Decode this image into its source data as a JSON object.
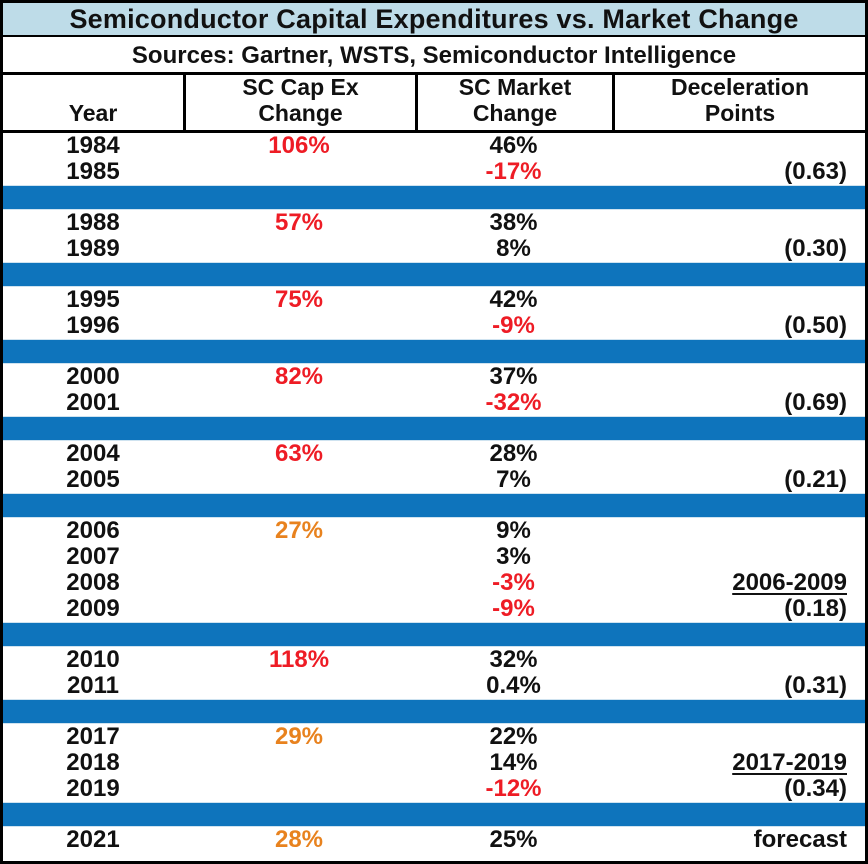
{
  "title": "Semiconductor Capital Expenditures vs. Market Change",
  "sources_line": "Sources: Gartner, WSTS, Semiconductor Intelligence",
  "header": {
    "year": "Year",
    "cap_ex": "SC Cap Ex\nChange",
    "market": "SC Market\nChange",
    "decel": "Deceleration\nPoints"
  },
  "colors": {
    "black": "#111111",
    "red": "#EE1C25",
    "orange": "#E8821E",
    "bar_blue": "#0E74BC",
    "title_bg": "#BEDCE8"
  },
  "chart_data": {
    "type": "table",
    "title": "Semiconductor Capital Expenditures vs. Market Change",
    "subtitle": "Sources: Gartner, WSTS, Semiconductor Intelligence",
    "columns": [
      "Year",
      "SC Cap Ex Change",
      "SC Market Change",
      "Deceleration Points"
    ],
    "sections": [
      {
        "rows": [
          {
            "year": "1984",
            "cap_ex": "106%",
            "cap_ex_color": "red",
            "market": "46%",
            "market_color": "black",
            "decel": "",
            "decel_underline": false
          },
          {
            "year": "1985",
            "cap_ex": "",
            "cap_ex_color": "black",
            "market": "-17%",
            "market_color": "red",
            "decel": "(0.63)",
            "decel_underline": false
          }
        ]
      },
      {
        "rows": [
          {
            "year": "1988",
            "cap_ex": "57%",
            "cap_ex_color": "red",
            "market": "38%",
            "market_color": "black",
            "decel": "",
            "decel_underline": false
          },
          {
            "year": "1989",
            "cap_ex": "",
            "cap_ex_color": "black",
            "market": "8%",
            "market_color": "black",
            "decel": "(0.30)",
            "decel_underline": false
          }
        ]
      },
      {
        "rows": [
          {
            "year": "1995",
            "cap_ex": "75%",
            "cap_ex_color": "red",
            "market": "42%",
            "market_color": "black",
            "decel": "",
            "decel_underline": false
          },
          {
            "year": "1996",
            "cap_ex": "",
            "cap_ex_color": "black",
            "market": "-9%",
            "market_color": "red",
            "decel": "(0.50)",
            "decel_underline": false
          }
        ]
      },
      {
        "rows": [
          {
            "year": "2000",
            "cap_ex": "82%",
            "cap_ex_color": "red",
            "market": "37%",
            "market_color": "black",
            "decel": "",
            "decel_underline": false
          },
          {
            "year": "2001",
            "cap_ex": "",
            "cap_ex_color": "black",
            "market": "-32%",
            "market_color": "red",
            "decel": "(0.69)",
            "decel_underline": false
          }
        ]
      },
      {
        "rows": [
          {
            "year": "2004",
            "cap_ex": "63%",
            "cap_ex_color": "red",
            "market": "28%",
            "market_color": "black",
            "decel": "",
            "decel_underline": false
          },
          {
            "year": "2005",
            "cap_ex": "",
            "cap_ex_color": "black",
            "market": "7%",
            "market_color": "black",
            "decel": "(0.21)",
            "decel_underline": false
          }
        ]
      },
      {
        "rows": [
          {
            "year": "2006",
            "cap_ex": "27%",
            "cap_ex_color": "orange",
            "market": "9%",
            "market_color": "black",
            "decel": "",
            "decel_underline": false
          },
          {
            "year": "2007",
            "cap_ex": "",
            "cap_ex_color": "black",
            "market": "3%",
            "market_color": "black",
            "decel": "",
            "decel_underline": false
          },
          {
            "year": "2008",
            "cap_ex": "",
            "cap_ex_color": "black",
            "market": "-3%",
            "market_color": "red",
            "decel": "2006-2009",
            "decel_underline": true
          },
          {
            "year": "2009",
            "cap_ex": "",
            "cap_ex_color": "black",
            "market": "-9%",
            "market_color": "red",
            "decel": "(0.18)",
            "decel_underline": false
          }
        ]
      },
      {
        "rows": [
          {
            "year": "2010",
            "cap_ex": "118%",
            "cap_ex_color": "red",
            "market": "32%",
            "market_color": "black",
            "decel": "",
            "decel_underline": false
          },
          {
            "year": "2011",
            "cap_ex": "",
            "cap_ex_color": "black",
            "market": "0.4%",
            "market_color": "black",
            "decel": "(0.31)",
            "decel_underline": false
          }
        ]
      },
      {
        "rows": [
          {
            "year": "2017",
            "cap_ex": "29%",
            "cap_ex_color": "orange",
            "market": "22%",
            "market_color": "black",
            "decel": "",
            "decel_underline": false
          },
          {
            "year": "2018",
            "cap_ex": "",
            "cap_ex_color": "black",
            "market": "14%",
            "market_color": "black",
            "decel": "2017-2019",
            "decel_underline": true
          },
          {
            "year": "2019",
            "cap_ex": "",
            "cap_ex_color": "black",
            "market": "-12%",
            "market_color": "red",
            "decel": "(0.34)",
            "decel_underline": false
          }
        ]
      },
      {
        "rows": [
          {
            "year": "2021",
            "cap_ex": "28%",
            "cap_ex_color": "orange",
            "market": "25%",
            "market_color": "black",
            "decel": "forecast",
            "decel_underline": false
          }
        ]
      }
    ]
  }
}
